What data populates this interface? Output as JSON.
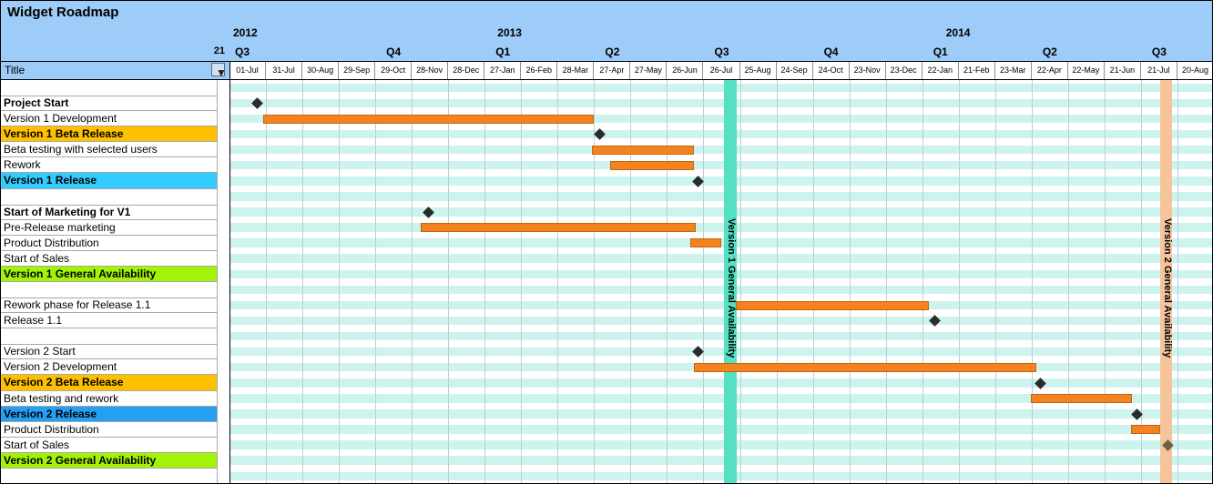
{
  "window": {
    "title": "Widget Roadmap"
  },
  "left_panel": {
    "column_header": "Title",
    "week_number": "21",
    "filter_icon_glyph": "▼"
  },
  "colors": {
    "header_bg": "#9dccf8",
    "date_row_bg": "#ffffff",
    "date_cell_border": "#7d93a8",
    "header_line": "#000000",
    "stripe": "#ccf3ee",
    "grid_line": "#b9cfdb",
    "bar_fill": "#f5821f",
    "bar_border": "#b96a10",
    "milestone": "#2b2b2b",
    "row_line": "#a8a8a8",
    "panel_divider": "#a8a8a8"
  },
  "chart_data": {
    "type": "gantt",
    "title": "Widget Roadmap",
    "time_axis": {
      "columns": 27,
      "days_per_column": 30,
      "start": "2012-07-01",
      "date_ticks": [
        "01-Jul",
        "31-Jul",
        "30-Aug",
        "29-Sep",
        "29-Oct",
        "28-Nov",
        "28-Dec",
        "27-Jan",
        "26-Feb",
        "28-Mar",
        "27-Apr",
        "27-May",
        "26-Jun",
        "26-Jul",
        "25-Aug",
        "24-Sep",
        "24-Oct",
        "23-Nov",
        "23-Dec",
        "22-Jan",
        "21-Feb",
        "23-Mar",
        "22-Apr",
        "22-May",
        "21-Jun",
        "21-Jul",
        "20-Aug"
      ],
      "years": [
        {
          "label": "2012",
          "col": 0.1
        },
        {
          "label": "2013",
          "col": 7.35
        },
        {
          "label": "2014",
          "col": 19.65
        }
      ],
      "quarters": [
        {
          "label": "Q3",
          "col": 0.15
        },
        {
          "label": "Q4",
          "col": 4.3
        },
        {
          "label": "Q1",
          "col": 7.3
        },
        {
          "label": "Q2",
          "col": 10.3
        },
        {
          "label": "Q3",
          "col": 13.3
        },
        {
          "label": "Q4",
          "col": 16.3
        },
        {
          "label": "Q1",
          "col": 19.3
        },
        {
          "label": "Q2",
          "col": 22.3
        },
        {
          "label": "Q3",
          "col": 25.3
        }
      ]
    },
    "tasks": [
      {
        "title": ""
      },
      {
        "title": "Project Start",
        "emphasis": true,
        "milestone": {
          "col": 0.75,
          "date": "2012-07-23"
        }
      },
      {
        "title": "Version 1 Development",
        "bar": {
          "start_col": 0.93,
          "end_col": 9.98,
          "start_date": "2012-07-29",
          "end_date": "2013-04-26"
        }
      },
      {
        "title": "Version 1 Beta Release",
        "emphasis": true,
        "row_color": "#ffc000",
        "milestone": {
          "col": 10.15,
          "date": "2013-05-01"
        }
      },
      {
        "title": "Beta testing with selected users",
        "bar": {
          "start_col": 9.95,
          "end_col": 12.75,
          "start_date": "2013-04-25",
          "end_date": "2013-07-18"
        }
      },
      {
        "title": "Rework",
        "bar": {
          "start_col": 10.43,
          "end_col": 12.75,
          "start_date": "2013-05-10",
          "end_date": "2013-07-18"
        }
      },
      {
        "title": "Version 1 Release",
        "emphasis": true,
        "row_color": "#33ccff",
        "milestone": {
          "col": 12.85,
          "date": "2013-07-21"
        }
      },
      {
        "title": ""
      },
      {
        "title": "Start of Marketing for V1",
        "emphasis": true,
        "milestone": {
          "col": 5.45,
          "date": "2012-12-11"
        }
      },
      {
        "title": "Pre-Release marketing",
        "bar": {
          "start_col": 5.25,
          "end_col": 12.78,
          "start_date": "2012-12-05",
          "end_date": "2013-07-19"
        }
      },
      {
        "title": "Product Distribution",
        "bar": {
          "start_col": 12.65,
          "end_col": 13.5,
          "start_date": "2013-07-15",
          "end_date": "2013-08-09"
        }
      },
      {
        "title": "Start of Sales"
      },
      {
        "title": "Version 1 General Availability",
        "emphasis": true,
        "row_color": "#a2f307"
      },
      {
        "title": ""
      },
      {
        "title": "Rework phase for Release 1.1",
        "bar": {
          "start_col": 13.88,
          "end_col": 19.18,
          "start_date": "2013-08-21",
          "end_date": "2014-01-27"
        }
      },
      {
        "title": "Release 1.1",
        "milestone": {
          "col": 19.35,
          "date": "2014-02-01"
        }
      },
      {
        "title": ""
      },
      {
        "title": "Version 2 Start",
        "milestone": {
          "col": 12.85,
          "date": "2013-07-21"
        }
      },
      {
        "title": "Version 2 Development",
        "bar": {
          "start_col": 12.73,
          "end_col": 22.13,
          "start_date": "2013-07-17",
          "end_date": "2014-04-26"
        }
      },
      {
        "title": "Version 2 Beta Release",
        "emphasis": true,
        "row_color": "#ffc000",
        "milestone": {
          "col": 22.23,
          "date": "2014-04-29"
        }
      },
      {
        "title": "Beta testing and rework",
        "bar": {
          "start_col": 21.98,
          "end_col": 24.75,
          "start_date": "2014-04-21",
          "end_date": "2014-07-13"
        }
      },
      {
        "title": "Version 2 Release",
        "emphasis": true,
        "row_color": "#249ff2",
        "milestone": {
          "col": 24.88,
          "date": "2014-07-17"
        }
      },
      {
        "title": "Product Distribution",
        "bar": {
          "start_col": 24.73,
          "end_col": 25.52,
          "start_date": "2014-07-13",
          "end_date": "2014-08-05"
        }
      },
      {
        "title": "Start of Sales",
        "milestone": {
          "col": 25.75,
          "date": "2014-08-12",
          "color": "#6f6047"
        }
      },
      {
        "title": "Version 2 General Availability",
        "emphasis": true,
        "row_color": "#a2f307"
      },
      {
        "title": ""
      }
    ],
    "milestone_bands": [
      {
        "label": "Version 1 General Availability",
        "start_col": 13.57,
        "end_col": 13.9,
        "approx_date": "2013-08-16",
        "color": "#55e0c3"
      },
      {
        "label": "Version 2 General Availability",
        "start_col": 25.53,
        "end_col": 25.86,
        "approx_date": "2014-08-10",
        "color": "#f6c49b"
      }
    ]
  }
}
